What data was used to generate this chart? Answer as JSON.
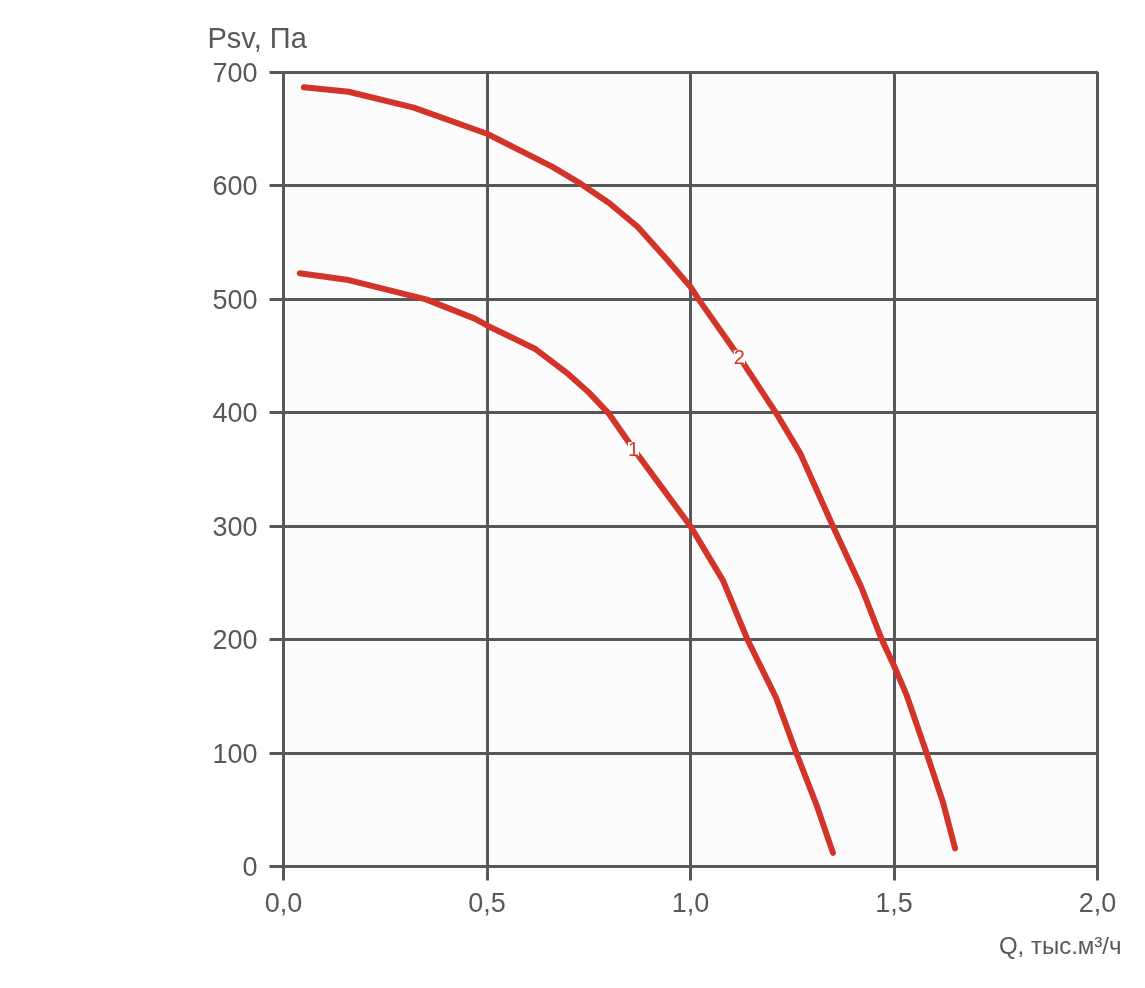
{
  "chart_data": {
    "type": "line",
    "xlabel": "Q, тыс.м³/ч",
    "ylabel": "Psv, Па",
    "xlim": [
      0,
      2
    ],
    "ylim": [
      0,
      700
    ],
    "xticks": [
      {
        "value": 0,
        "label": "0,0"
      },
      {
        "value": 0.5,
        "label": "0,5"
      },
      {
        "value": 1,
        "label": "1,0"
      },
      {
        "value": 1.5,
        "label": "1,5"
      },
      {
        "value": 2,
        "label": "2,0"
      }
    ],
    "yticks": [
      0,
      100,
      200,
      300,
      400,
      500,
      600,
      700
    ],
    "grid": true,
    "series": [
      {
        "name": "1",
        "color": "#d2342a",
        "x": [
          0.04,
          0.16,
          0.35,
          0.47,
          0.5,
          0.62,
          0.7,
          0.75,
          0.8,
          0.86,
          0.93,
          1.0,
          1.08,
          1.14,
          1.21,
          1.26,
          1.31,
          1.35
        ],
        "values": [
          523,
          517,
          500,
          483,
          477,
          456,
          434,
          418,
          399,
          368,
          334,
          300,
          252,
          200,
          149,
          100,
          54,
          12
        ]
      },
      {
        "name": "2",
        "color": "#d2342a",
        "x": [
          0.05,
          0.16,
          0.32,
          0.5,
          0.66,
          0.73,
          0.8,
          0.87,
          0.94,
          1.0,
          1.02,
          1.12,
          1.21,
          1.27,
          1.31,
          1.35,
          1.42,
          1.47,
          1.5,
          1.53,
          1.58,
          1.62,
          1.65
        ],
        "values": [
          687,
          683,
          669,
          646,
          617,
          602,
          585,
          564,
          536,
          511,
          500,
          449,
          400,
          364,
          332,
          300,
          246,
          200,
          177,
          152,
          100,
          57,
          16
        ]
      }
    ]
  }
}
